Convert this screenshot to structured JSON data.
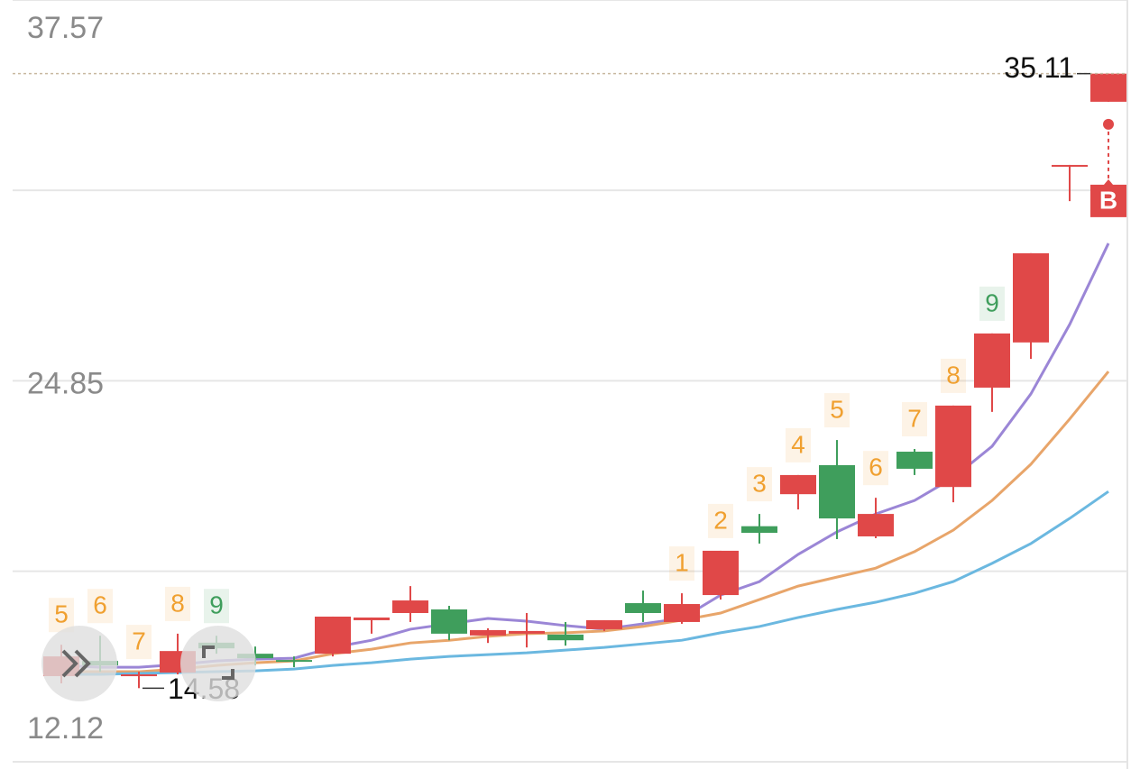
{
  "chart_data": {
    "type": "candlestick",
    "open": [
      14.98,
      15.49,
      14.98,
      15.1,
      16.1,
      15.73,
      15.52,
      15.73,
      16.85,
      17.09,
      17.21,
      16.34,
      16.4,
      16.37,
      16.55,
      17.42,
      16.79,
      17.69,
      19.99,
      21.06,
      22.03,
      19.65,
      22.48,
      21.3,
      24.62,
      26.13,
      32.06,
      34.17
    ],
    "high": [
      16.03,
      16.33,
      15.13,
      16.4,
      16.33,
      15.97,
      15.64,
      16.97,
      16.94,
      17.99,
      17.33,
      16.58,
      17.09,
      16.79,
      16.85,
      17.84,
      17.75,
      19.17,
      20.4,
      21.7,
      22.87,
      20.94,
      22.57,
      24.02,
      26.43,
      29.11,
      32.06,
      35.11
    ],
    "low": [
      14.74,
      15.13,
      14.58,
      15.04,
      15.73,
      15.34,
      15.28,
      15.64,
      16.4,
      16.79,
      16.18,
      16.09,
      15.94,
      16.0,
      16.49,
      16.79,
      16.73,
      17.54,
      19.41,
      20.55,
      19.56,
      19.59,
      21.7,
      20.79,
      23.81,
      25.58,
      30.85,
      34.17
    ],
    "close": [
      15.64,
      15.34,
      15.04,
      15.82,
      15.91,
      15.58,
      15.46,
      16.97,
      16.94,
      17.51,
      16.4,
      16.52,
      16.49,
      16.18,
      16.85,
      17.09,
      17.39,
      19.17,
      19.77,
      21.7,
      20.25,
      20.4,
      21.91,
      24.02,
      26.43,
      29.11,
      32.06,
      35.11
    ],
    "up_color": "#e04848",
    "down_color": "#3f9e5c",
    "series": [
      {
        "color": "#9b86d6",
        "values": [
          15.34,
          15.28,
          15.28,
          15.37,
          15.49,
          15.55,
          15.58,
          15.94,
          16.18,
          16.55,
          16.73,
          16.91,
          16.82,
          16.67,
          16.55,
          16.73,
          16.91,
          17.69,
          18.14,
          19.05,
          19.8,
          20.4,
          20.85,
          21.61,
          22.66,
          24.41,
          26.73,
          29.44
        ]
      },
      {
        "color": "#e8a56a",
        "values": [
          15.13,
          15.13,
          15.13,
          15.22,
          15.34,
          15.43,
          15.49,
          15.73,
          15.88,
          16.09,
          16.18,
          16.31,
          16.4,
          16.43,
          16.49,
          16.64,
          16.85,
          17.09,
          17.54,
          17.99,
          18.29,
          18.59,
          19.14,
          19.86,
          20.85,
          22.06,
          23.57,
          25.16
        ]
      },
      {
        "color": "#6bb8e0",
        "values": [
          15.04,
          15.04,
          15.07,
          15.1,
          15.13,
          15.16,
          15.22,
          15.34,
          15.43,
          15.55,
          15.64,
          15.7,
          15.76,
          15.85,
          15.94,
          16.06,
          16.18,
          16.43,
          16.64,
          16.94,
          17.21,
          17.45,
          17.75,
          18.14,
          18.75,
          19.41,
          20.25,
          21.15
        ]
      }
    ],
    "annotations": [
      {
        "index": 0,
        "label": "5",
        "color": "#f0a030"
      },
      {
        "index": 1,
        "label": "6",
        "color": "#f0a030"
      },
      {
        "index": 2,
        "label": "7",
        "color": "#f0a030"
      },
      {
        "index": 3,
        "label": "8",
        "color": "#f0a030"
      },
      {
        "index": 4,
        "label": "9",
        "color": "#3f9e5c"
      },
      {
        "index": 16,
        "label": "1",
        "color": "#f0a030"
      },
      {
        "index": 17,
        "label": "2",
        "color": "#f0a030"
      },
      {
        "index": 18,
        "label": "3",
        "color": "#f0a030"
      },
      {
        "index": 19,
        "label": "4",
        "color": "#f0a030"
      },
      {
        "index": 20,
        "label": "5",
        "color": "#f0a030"
      },
      {
        "index": 21,
        "label": "6",
        "color": "#f0a030"
      },
      {
        "index": 22,
        "label": "7",
        "color": "#f0a030"
      },
      {
        "index": 23,
        "label": "8",
        "color": "#f0a030"
      },
      {
        "index": 24,
        "label": "9",
        "color": "#3f9e5c"
      }
    ],
    "signal": {
      "index": 27,
      "label": "B"
    },
    "ylim": [
      12.12,
      37.57
    ],
    "yticks": [
      12.12,
      24.85,
      37.57
    ],
    "grid": true
  }
}
